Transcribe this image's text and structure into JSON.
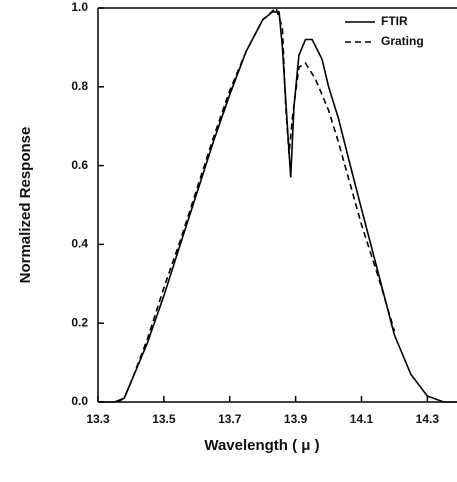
{
  "chart_data": {
    "type": "line",
    "xlabel": "Wavelength ( μ )",
    "ylabel": "Normalized Response",
    "xlim": [
      13.3,
      14.39
    ],
    "ylim": [
      0,
      1
    ],
    "xticks": [
      13.3,
      13.5,
      13.7,
      13.9,
      14.1,
      14.3
    ],
    "yticks": [
      {
        "value": 0,
        "label": "0.0"
      },
      0.2,
      0.4,
      0.6,
      0.8,
      {
        "value": 1,
        "label": "1.0"
      }
    ],
    "legend": "upper right",
    "series": [
      {
        "name": "FTIR",
        "color": "#000000",
        "dash": "solid",
        "x": [
          13.3,
          13.35,
          13.38,
          13.4,
          13.45,
          13.5,
          13.55,
          13.6,
          13.65,
          13.7,
          13.75,
          13.8,
          13.83,
          13.85,
          13.86,
          13.875,
          13.885,
          13.895,
          13.91,
          13.93,
          13.95,
          13.98,
          14.0,
          14.03,
          14.06,
          14.1,
          14.15,
          14.2,
          14.25,
          14.3,
          14.35,
          14.39
        ],
        "values": [
          0,
          0,
          0.01,
          0.05,
          0.15,
          0.27,
          0.4,
          0.53,
          0.66,
          0.78,
          0.89,
          0.97,
          0.99,
          0.99,
          0.9,
          0.7,
          0.57,
          0.75,
          0.88,
          0.92,
          0.92,
          0.87,
          0.8,
          0.72,
          0.62,
          0.49,
          0.33,
          0.17,
          0.07,
          0.015,
          0,
          0
        ]
      },
      {
        "name": "Grating",
        "color": "#000000",
        "dash": "dashed",
        "x": [
          13.36,
          13.38,
          13.4,
          13.45,
          13.5,
          13.55,
          13.6,
          13.65,
          13.7,
          13.75,
          13.8,
          13.84,
          13.86,
          13.87,
          13.88,
          13.89,
          13.91,
          13.93,
          13.96,
          14.0,
          14.03,
          14.06,
          14.1,
          14.15,
          14.2
        ],
        "values": [
          0,
          0.01,
          0.05,
          0.16,
          0.29,
          0.41,
          0.54,
          0.67,
          0.79,
          0.89,
          0.97,
          1.0,
          0.95,
          0.75,
          0.63,
          0.72,
          0.85,
          0.86,
          0.82,
          0.74,
          0.66,
          0.57,
          0.45,
          0.32,
          0.18
        ]
      }
    ]
  }
}
